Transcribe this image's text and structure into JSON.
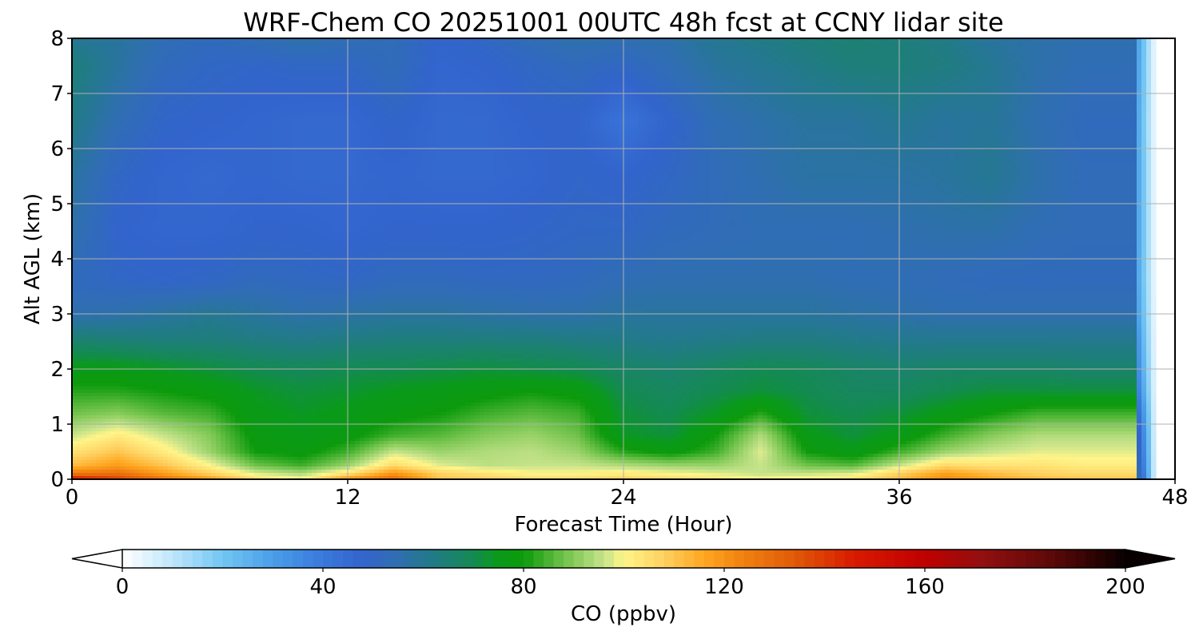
{
  "chart_data": {
    "type": "heatmap",
    "title": "WRF-Chem CO  20251001 00UTC 48h fcst at CCNY lidar site",
    "xlabel": "Forecast Time (Hour)",
    "ylabel": "Alt AGL (km)",
    "xlim": [
      0,
      48
    ],
    "ylim": [
      0,
      8
    ],
    "xticks": [
      "0",
      "12",
      "24",
      "36",
      "48"
    ],
    "yticks": [
      "0",
      "1",
      "2",
      "3",
      "4",
      "5",
      "6",
      "7",
      "8"
    ],
    "grid": true,
    "data_end_hour": 46.3,
    "colorbar": {
      "label": "CO  (ppbv)",
      "range": [
        0,
        200
      ],
      "ticks": [
        "0",
        "40",
        "80",
        "120",
        "160",
        "200"
      ],
      "extend": "both",
      "orientation": "horizontal",
      "stops": [
        {
          "value": 0,
          "color": "#ffffff"
        },
        {
          "value": 10,
          "color": "#bfe6fb"
        },
        {
          "value": 20,
          "color": "#72c6f3"
        },
        {
          "value": 30,
          "color": "#4a9ee8"
        },
        {
          "value": 40,
          "color": "#3a78dc"
        },
        {
          "value": 48,
          "color": "#3264cc"
        },
        {
          "value": 55,
          "color": "#2f6fb0"
        },
        {
          "value": 62,
          "color": "#217b86"
        },
        {
          "value": 70,
          "color": "#148a52"
        },
        {
          "value": 75,
          "color": "#0a9a1a"
        },
        {
          "value": 80,
          "color": "#0c9a0c"
        },
        {
          "value": 88,
          "color": "#6fc24a"
        },
        {
          "value": 96,
          "color": "#c6e38a"
        },
        {
          "value": 100,
          "color": "#fff58a"
        },
        {
          "value": 108,
          "color": "#ffd060"
        },
        {
          "value": 116,
          "color": "#ffa620"
        },
        {
          "value": 124,
          "color": "#f08010"
        },
        {
          "value": 134,
          "color": "#e05a08"
        },
        {
          "value": 146,
          "color": "#d81a00"
        },
        {
          "value": 160,
          "color": "#c00000"
        },
        {
          "value": 172,
          "color": "#901010"
        },
        {
          "value": 186,
          "color": "#5a0808"
        },
        {
          "value": 200,
          "color": "#080000"
        }
      ]
    },
    "field": {
      "hours": [
        0,
        2,
        4,
        6,
        8,
        10,
        12,
        14,
        16,
        18,
        20,
        22,
        24,
        26,
        28,
        30,
        32,
        34,
        36,
        38,
        40,
        42,
        44,
        46
      ],
      "altitudes_km": [
        0,
        0.1,
        0.25,
        0.5,
        0.8,
        1.2,
        1.6,
        2.0,
        2.5,
        3.0,
        3.6,
        4.5,
        5.5,
        6.5,
        7.5,
        8
      ],
      "values_ppbv": [
        [
          150,
          140,
          128,
          118,
          105,
          100,
          120,
          130,
          110,
          108,
          106,
          106,
          108,
          106,
          104,
          100,
          102,
          104,
          112,
          122,
          116,
          112,
          110,
          110
        ],
        [
          126,
          128,
          118,
          108,
          98,
          94,
          104,
          120,
          108,
          104,
          100,
          100,
          102,
          100,
          98,
          96,
          96,
          98,
          108,
          118,
          112,
          108,
          106,
          106
        ],
        [
          112,
          118,
          110,
          100,
          88,
          84,
          92,
          106,
          98,
          95,
          96,
          96,
          94,
          92,
          92,
          96,
          88,
          86,
          96,
          106,
          104,
          104,
          102,
          102
        ],
        [
          104,
          110,
          102,
          92,
          80,
          78,
          84,
          96,
          92,
          94,
          95,
          92,
          82,
          78,
          84,
          98,
          80,
          76,
          84,
          92,
          96,
          98,
          98,
          98
        ],
        [
          96,
          102,
          96,
          90,
          78,
          76,
          78,
          84,
          86,
          90,
          92,
          88,
          74,
          72,
          80,
          94,
          76,
          72,
          76,
          84,
          90,
          94,
          94,
          94
        ],
        [
          88,
          90,
          86,
          84,
          76,
          74,
          76,
          78,
          80,
          84,
          86,
          84,
          72,
          70,
          74,
          82,
          72,
          70,
          72,
          76,
          80,
          84,
          84,
          84
        ],
        [
          82,
          82,
          80,
          78,
          74,
          72,
          73,
          75,
          76,
          78,
          80,
          78,
          70,
          68,
          70,
          72,
          70,
          68,
          68,
          70,
          72,
          72,
          72,
          72
        ],
        [
          76,
          76,
          74,
          72,
          70,
          69,
          70,
          70,
          71,
          72,
          71,
          70,
          67,
          66,
          68,
          70,
          69,
          67,
          66,
          67,
          67,
          67,
          66,
          66
        ],
        [
          66,
          65,
          64,
          64,
          63,
          62,
          63,
          64,
          64,
          64,
          64,
          63,
          62,
          61,
          62,
          63,
          63,
          62,
          61,
          61,
          61,
          61,
          61,
          61
        ],
        [
          55,
          56,
          58,
          60,
          58,
          56,
          57,
          58,
          58,
          57,
          56,
          56,
          58,
          58,
          58,
          58,
          58,
          57,
          56,
          55,
          55,
          55,
          55,
          55
        ],
        [
          52,
          50,
          49,
          50,
          52,
          51,
          50,
          52,
          52,
          51,
          51,
          52,
          54,
          55,
          55,
          55,
          55,
          54,
          54,
          53,
          52,
          52,
          52,
          52
        ],
        [
          56,
          48,
          47,
          47,
          48,
          48,
          47,
          48,
          48,
          48,
          49,
          50,
          50,
          52,
          53,
          54,
          54,
          54,
          55,
          56,
          56,
          54,
          53,
          53
        ],
        [
          58,
          50,
          47,
          46,
          47,
          46,
          46,
          47,
          46,
          46,
          47,
          49,
          48,
          50,
          53,
          55,
          57,
          57,
          57,
          58,
          60,
          56,
          53,
          53
        ],
        [
          62,
          54,
          49,
          48,
          47,
          46,
          46,
          49,
          46,
          46,
          48,
          48,
          42,
          48,
          54,
          56,
          58,
          58,
          60,
          58,
          59,
          55,
          52,
          52
        ],
        [
          64,
          58,
          52,
          50,
          49,
          50,
          50,
          53,
          47,
          48,
          50,
          52,
          50,
          54,
          58,
          60,
          62,
          64,
          64,
          63,
          60,
          56,
          54,
          54
        ],
        [
          60,
          58,
          54,
          52,
          54,
          56,
          54,
          53,
          48,
          50,
          54,
          56,
          55,
          56,
          60,
          62,
          64,
          65,
          64,
          62,
          58,
          56,
          55,
          55
        ]
      ]
    }
  }
}
